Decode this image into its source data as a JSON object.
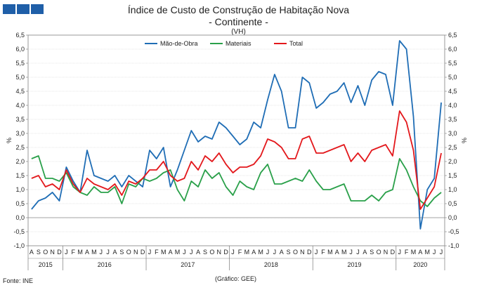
{
  "header": {
    "title": "Índice de Custo de Construção de Habitação Nova",
    "subtitle": "- Continente -",
    "unit": "(VH)"
  },
  "footer": {
    "source": "Fonte: INE",
    "credit": "(Gráfico: GEE)"
  },
  "chart_data": {
    "type": "line",
    "title": "Índice de Custo de Construção de Habitação Nova - Continente - (VH)",
    "ylabel": "%",
    "ylabel_right": "%",
    "ylim": [
      -1.0,
      6.5
    ],
    "yticks": [
      "-1,0",
      "-0,5",
      "0,0",
      "0,5",
      "1,0",
      "1,5",
      "2,0",
      "2,5",
      "3,0",
      "3,5",
      "4,0",
      "4,5",
      "5,0",
      "5,5",
      "6,0",
      "6,5"
    ],
    "months": [
      "A",
      "S",
      "O",
      "N",
      "D",
      "J",
      "F",
      "M",
      "A",
      "M",
      "J",
      "J",
      "A",
      "S",
      "O",
      "N",
      "D",
      "J",
      "F",
      "M",
      "A",
      "M",
      "J",
      "J",
      "A",
      "S",
      "O",
      "N",
      "D",
      "J",
      "F",
      "M",
      "A",
      "M",
      "J",
      "J",
      "A",
      "S",
      "O",
      "N",
      "D",
      "J",
      "F",
      "M",
      "A",
      "M",
      "J",
      "J",
      "A",
      "S",
      "O",
      "N",
      "D",
      "J",
      "F",
      "M",
      "A",
      "M",
      "J",
      "J"
    ],
    "years": [
      {
        "label": "2015",
        "count": 5
      },
      {
        "label": "2016",
        "count": 12
      },
      {
        "label": "2017",
        "count": 12
      },
      {
        "label": "2018",
        "count": 12
      },
      {
        "label": "2019",
        "count": 12
      },
      {
        "label": "2020",
        "count": 7
      }
    ],
    "legend": [
      "Mão-de-Obra",
      "Materiais",
      "Total"
    ],
    "series": [
      {
        "name": "Mão-de-Obra",
        "color": "#1f6db5",
        "values": [
          0.3,
          0.6,
          0.7,
          0.9,
          0.6,
          1.8,
          1.3,
          0.9,
          2.4,
          1.5,
          1.4,
          1.3,
          1.5,
          1.1,
          1.5,
          1.3,
          1.1,
          2.4,
          2.1,
          2.5,
          1.1,
          1.7,
          2.4,
          3.1,
          2.7,
          2.9,
          2.8,
          3.4,
          3.2,
          2.9,
          2.6,
          2.8,
          3.4,
          3.2,
          4.2,
          5.1,
          4.5,
          3.2,
          3.2,
          5.0,
          4.8,
          3.9,
          4.1,
          4.4,
          4.5,
          4.8,
          4.1,
          4.7,
          4.0,
          4.9,
          5.2,
          5.1,
          4.0,
          6.3,
          6.0,
          3.6,
          -0.4,
          1.0,
          1.4,
          4.1
        ]
      },
      {
        "name": "Materiais",
        "color": "#2aa04a",
        "values": [
          2.1,
          2.2,
          1.4,
          1.4,
          1.3,
          1.6,
          1.1,
          0.9,
          0.8,
          1.1,
          0.9,
          0.9,
          1.1,
          0.5,
          1.2,
          1.1,
          1.4,
          1.3,
          1.4,
          1.6,
          1.7,
          1.0,
          0.6,
          1.3,
          1.1,
          1.7,
          1.4,
          1.6,
          1.1,
          0.8,
          1.3,
          1.1,
          1.0,
          1.6,
          1.9,
          1.2,
          1.2,
          1.3,
          1.4,
          1.3,
          1.7,
          1.3,
          1.0,
          1.0,
          1.1,
          1.2,
          0.6,
          0.6,
          0.6,
          0.8,
          0.6,
          0.9,
          1.0,
          2.1,
          1.7,
          1.1,
          0.6,
          0.4,
          0.7,
          0.9
        ]
      },
      {
        "name": "Total",
        "color": "#e3181c",
        "values": [
          1.4,
          1.5,
          1.1,
          1.2,
          1.0,
          1.7,
          1.2,
          0.9,
          1.4,
          1.2,
          1.1,
          1.0,
          1.2,
          0.8,
          1.3,
          1.2,
          1.4,
          1.7,
          1.7,
          2.0,
          1.5,
          1.3,
          1.4,
          2.0,
          1.7,
          2.2,
          2.0,
          2.3,
          1.9,
          1.6,
          1.8,
          1.8,
          1.9,
          2.2,
          2.8,
          2.7,
          2.5,
          2.1,
          2.1,
          2.8,
          2.9,
          2.3,
          2.3,
          2.4,
          2.5,
          2.6,
          2.0,
          2.3,
          2.0,
          2.4,
          2.5,
          2.6,
          2.2,
          3.8,
          3.4,
          2.4,
          0.3,
          0.7,
          1.1,
          2.3
        ]
      }
    ]
  }
}
